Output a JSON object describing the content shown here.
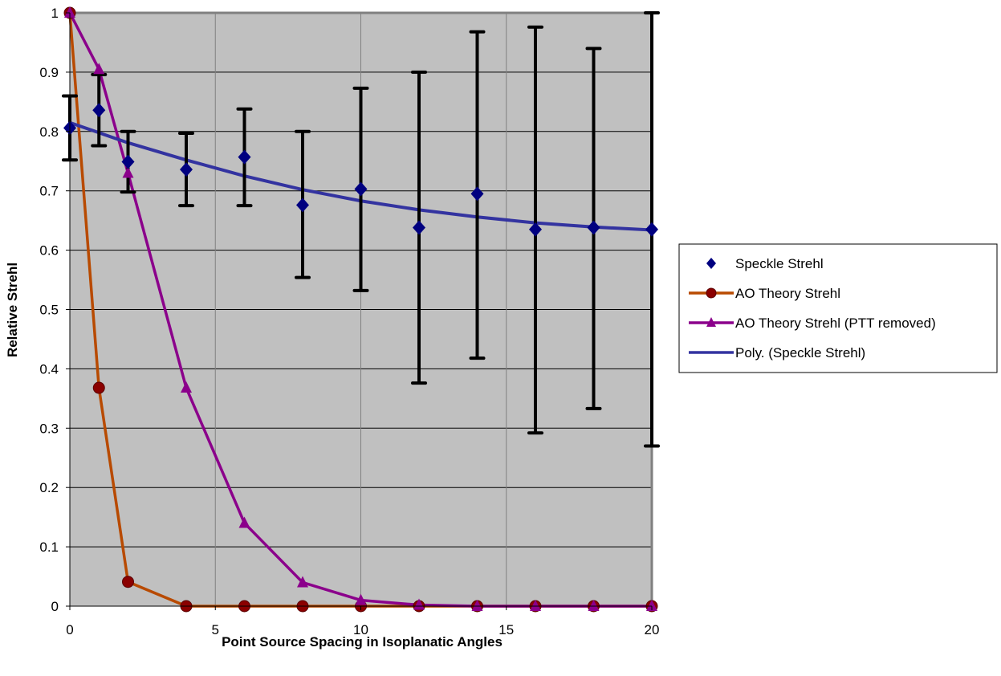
{
  "chart_data": {
    "type": "scatter",
    "title": "",
    "xlabel": "Point Source Spacing in Isoplanatic Angles",
    "ylabel": "Relative Strehl",
    "xlim": [
      0,
      20
    ],
    "ylim": [
      0,
      1
    ],
    "x_ticks": [
      "0",
      "5",
      "10",
      "15",
      "20"
    ],
    "y_ticks": [
      "0",
      "0.1",
      "0.2",
      "0.3",
      "0.4",
      "0.5",
      "0.6",
      "0.7",
      "0.8",
      "0.9",
      "1"
    ],
    "grid": true,
    "legend_position": "right",
    "plot_background": "#c0c0c0",
    "series": [
      {
        "name": "Speckle Strehl",
        "kind": "markers-with-error-bars",
        "marker": "diamond",
        "color": "#000080",
        "x": [
          0,
          1,
          2,
          4,
          6,
          8,
          10,
          12,
          14,
          16,
          18,
          20
        ],
        "y": [
          0.806,
          0.836,
          0.749,
          0.736,
          0.757,
          0.676,
          0.703,
          0.638,
          0.695,
          0.635,
          0.638,
          0.635
        ],
        "y_low": [
          0.752,
          0.776,
          0.698,
          0.675,
          0.675,
          0.554,
          0.532,
          0.376,
          0.418,
          0.292,
          0.333,
          0.27
        ],
        "y_high": [
          0.86,
          0.896,
          0.8,
          0.797,
          0.838,
          0.8,
          0.873,
          0.9,
          0.968,
          0.976,
          0.94,
          1.0
        ]
      },
      {
        "name": "AO Theory Strehl",
        "kind": "line-markers",
        "marker": "circle",
        "color": "#b84a00",
        "marker_color": "#8b0000",
        "x": [
          0,
          1,
          2,
          4,
          6,
          8,
          10,
          12,
          14,
          16,
          18,
          20
        ],
        "y": [
          1.0,
          0.368,
          0.041,
          0.0,
          0.0,
          0.0,
          0.0,
          0.0,
          0.0,
          0.0,
          0.0,
          0.0
        ]
      },
      {
        "name": "AO Theory Strehl (PTT removed)",
        "kind": "line-markers",
        "marker": "triangle",
        "color": "#8b008b",
        "x": [
          0,
          1,
          2,
          4,
          6,
          8,
          10,
          12,
          14,
          16,
          18,
          20
        ],
        "y": [
          1.0,
          0.905,
          0.73,
          0.368,
          0.14,
          0.04,
          0.01,
          0.002,
          0.0,
          0.0,
          0.0,
          0.0
        ]
      },
      {
        "name": "Poly. (Speckle Strehl)",
        "kind": "trendline",
        "color": "#3333a0",
        "x": [
          0,
          2,
          4,
          6,
          8,
          10,
          12,
          14,
          16,
          18,
          20
        ],
        "y": [
          0.815,
          0.781,
          0.752,
          0.725,
          0.702,
          0.683,
          0.668,
          0.656,
          0.646,
          0.639,
          0.634
        ]
      }
    ]
  }
}
